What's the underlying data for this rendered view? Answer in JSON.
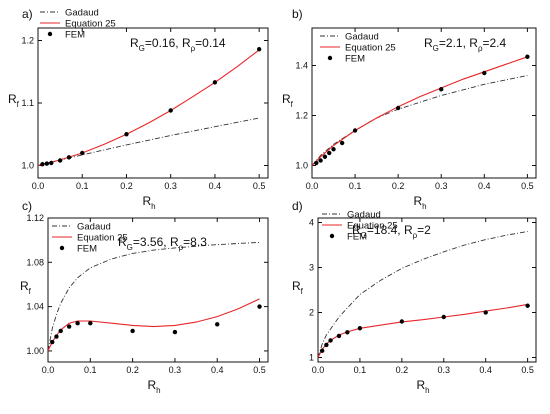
{
  "chart_data": [
    {
      "type": "line",
      "panel_label": "a)",
      "xlabel": "R",
      "xlabel_sub": "h",
      "ylabel": "R",
      "ylabel_sub": "f",
      "annotation": [
        {
          "t": "R"
        },
        {
          "t": "G",
          "sub": true
        },
        {
          "t": "=0.16, R"
        },
        {
          "t": "ρ",
          "sub": true
        },
        {
          "t": "=0.14"
        }
      ],
      "xlim": [
        0,
        0.52
      ],
      "ylim": [
        0.98,
        1.22
      ],
      "xticks": [
        0.0,
        0.1,
        0.2,
        0.3,
        0.4,
        0.5
      ],
      "xtick_labels": [
        "0.0",
        "0.1",
        "0.2",
        "0.3",
        "0.4",
        "0.5"
      ],
      "yticks": [
        1.0,
        1.1,
        1.2
      ],
      "ytick_labels": [
        "1.0",
        "1.1",
        "1.2"
      ],
      "series": [
        {
          "name": "Gadaud",
          "style": "dash-dot",
          "color": "#333333",
          "x": [
            0,
            0.1,
            0.2,
            0.3,
            0.4,
            0.5
          ],
          "y": [
            1.0,
            1.017,
            1.033,
            1.048,
            1.062,
            1.076
          ]
        },
        {
          "name": "Equation 25",
          "style": "solid",
          "color": "#e8262a",
          "x": [
            0,
            0.05,
            0.1,
            0.15,
            0.2,
            0.25,
            0.3,
            0.35,
            0.4,
            0.45,
            0.5
          ],
          "y": [
            1.0,
            1.009,
            1.02,
            1.034,
            1.05,
            1.068,
            1.088,
            1.11,
            1.133,
            1.158,
            1.185
          ]
        },
        {
          "name": "FEM",
          "style": "markers",
          "color": "#000000",
          "x": [
            0.01,
            0.02,
            0.03,
            0.05,
            0.07,
            0.1,
            0.2,
            0.3,
            0.4,
            0.5
          ],
          "y": [
            1.002,
            1.003,
            1.004,
            1.008,
            1.013,
            1.02,
            1.05,
            1.088,
            1.133,
            1.186
          ]
        }
      ]
    },
    {
      "type": "line",
      "panel_label": "b)",
      "xlabel": "R",
      "xlabel_sub": "h",
      "ylabel": "R",
      "ylabel_sub": "f",
      "annotation": [
        {
          "t": "R"
        },
        {
          "t": "G",
          "sub": true
        },
        {
          "t": "=2.1, R"
        },
        {
          "t": "ρ",
          "sub": true
        },
        {
          "t": "=2.4"
        }
      ],
      "xlim": [
        0,
        0.52
      ],
      "ylim": [
        0.95,
        1.55
      ],
      "xticks": [
        0.0,
        0.1,
        0.2,
        0.3,
        0.4,
        0.5
      ],
      "xtick_labels": [
        "0.0",
        "0.1",
        "0.2",
        "0.3",
        "0.4",
        "0.5"
      ],
      "yticks": [
        1.0,
        1.2,
        1.4
      ],
      "ytick_labels": [
        "1.0",
        "1.2",
        "1.4"
      ],
      "series": [
        {
          "name": "Gadaud",
          "style": "dash-dot",
          "color": "#333333",
          "x": [
            0,
            0.02,
            0.05,
            0.1,
            0.15,
            0.2,
            0.3,
            0.4,
            0.5
          ],
          "y": [
            1.0,
            1.04,
            1.085,
            1.14,
            1.19,
            1.225,
            1.28,
            1.325,
            1.36
          ]
        },
        {
          "name": "Equation 25",
          "style": "solid",
          "color": "#e8262a",
          "x": [
            0,
            0.02,
            0.05,
            0.1,
            0.15,
            0.2,
            0.25,
            0.3,
            0.35,
            0.4,
            0.45,
            0.5
          ],
          "y": [
            1.0,
            1.035,
            1.08,
            1.14,
            1.19,
            1.235,
            1.275,
            1.31,
            1.345,
            1.375,
            1.405,
            1.435
          ]
        },
        {
          "name": "FEM",
          "style": "markers",
          "color": "#000000",
          "x": [
            0.01,
            0.02,
            0.03,
            0.04,
            0.05,
            0.07,
            0.1,
            0.2,
            0.3,
            0.4,
            0.5
          ],
          "y": [
            1.01,
            1.02,
            1.035,
            1.05,
            1.065,
            1.09,
            1.14,
            1.23,
            1.305,
            1.37,
            1.435
          ]
        }
      ]
    },
    {
      "type": "line",
      "panel_label": "c)",
      "xlabel": "R",
      "xlabel_sub": "h",
      "ylabel": "R",
      "ylabel_sub": "f",
      "annotation": [
        {
          "t": "R"
        },
        {
          "t": "G",
          "sub": true
        },
        {
          "t": "=3.56, R"
        },
        {
          "t": "ρ",
          "sub": true
        },
        {
          "t": "=8.3"
        }
      ],
      "xlim": [
        0,
        0.52
      ],
      "ylim": [
        0.99,
        1.12
      ],
      "xticks": [
        0.0,
        0.1,
        0.2,
        0.3,
        0.4,
        0.5
      ],
      "xtick_labels": [
        "0.0",
        "0.1",
        "0.2",
        "0.3",
        "0.4",
        "0.5"
      ],
      "yticks": [
        1.0,
        1.04,
        1.08,
        1.12
      ],
      "ytick_labels": [
        "1.00",
        "1.04",
        "1.08",
        "1.12"
      ],
      "series": [
        {
          "name": "Gadaud",
          "style": "dash-dot",
          "color": "#333333",
          "x": [
            0,
            0.01,
            0.02,
            0.03,
            0.05,
            0.07,
            0.1,
            0.15,
            0.2,
            0.25,
            0.3,
            0.4,
            0.5
          ],
          "y": [
            1.0,
            1.02,
            1.033,
            1.043,
            1.057,
            1.066,
            1.075,
            1.083,
            1.088,
            1.091,
            1.093,
            1.096,
            1.098
          ]
        },
        {
          "name": "Equation 25",
          "style": "solid",
          "color": "#e8262a",
          "x": [
            0,
            0.01,
            0.02,
            0.03,
            0.05,
            0.07,
            0.1,
            0.15,
            0.2,
            0.25,
            0.3,
            0.35,
            0.4,
            0.45,
            0.5
          ],
          "y": [
            1.0,
            1.008,
            1.014,
            1.019,
            1.025,
            1.027,
            1.027,
            1.025,
            1.023,
            1.022,
            1.023,
            1.026,
            1.031,
            1.038,
            1.047
          ]
        },
        {
          "name": "FEM",
          "style": "markers",
          "color": "#000000",
          "x": [
            0.01,
            0.02,
            0.03,
            0.05,
            0.07,
            0.1,
            0.2,
            0.3,
            0.4,
            0.5
          ],
          "y": [
            1.008,
            1.013,
            1.018,
            1.022,
            1.025,
            1.025,
            1.018,
            1.017,
            1.024,
            1.04
          ]
        }
      ]
    },
    {
      "type": "line",
      "panel_label": "d)",
      "xlabel": "R",
      "xlabel_sub": "h",
      "ylabel": "R",
      "ylabel_sub": "f",
      "annotation": [
        {
          "t": "R"
        },
        {
          "t": "G",
          "sub": true
        },
        {
          "t": "=18.4, R"
        },
        {
          "t": "ρ",
          "sub": true
        },
        {
          "t": "=2"
        }
      ],
      "xlim": [
        0,
        0.52
      ],
      "ylim": [
        0.9,
        4.1
      ],
      "xticks": [
        0.0,
        0.1,
        0.2,
        0.3,
        0.4,
        0.5
      ],
      "xtick_labels": [
        "0.0",
        "0.1",
        "0.2",
        "0.3",
        "0.4",
        "0.5"
      ],
      "yticks": [
        1,
        2,
        3,
        4
      ],
      "ytick_labels": [
        "1",
        "2",
        "3",
        "4"
      ],
      "series": [
        {
          "name": "Gadaud",
          "style": "dash-dot",
          "color": "#333333",
          "x": [
            0,
            0.01,
            0.02,
            0.05,
            0.1,
            0.15,
            0.2,
            0.25,
            0.3,
            0.35,
            0.4,
            0.45,
            0.5
          ],
          "y": [
            1.0,
            1.3,
            1.5,
            1.9,
            2.4,
            2.72,
            2.98,
            3.18,
            3.35,
            3.5,
            3.62,
            3.72,
            3.8
          ]
        },
        {
          "name": "Equation 25",
          "style": "solid",
          "color": "#e8262a",
          "x": [
            0,
            0.01,
            0.02,
            0.03,
            0.05,
            0.07,
            0.1,
            0.15,
            0.2,
            0.25,
            0.3,
            0.35,
            0.4,
            0.45,
            0.5
          ],
          "y": [
            1.0,
            1.18,
            1.3,
            1.38,
            1.5,
            1.57,
            1.65,
            1.72,
            1.79,
            1.84,
            1.9,
            1.96,
            2.03,
            2.1,
            2.18
          ]
        },
        {
          "name": "FEM",
          "style": "markers",
          "color": "#000000",
          "x": [
            0.01,
            0.02,
            0.03,
            0.05,
            0.07,
            0.1,
            0.2,
            0.3,
            0.4,
            0.5
          ],
          "y": [
            1.15,
            1.28,
            1.38,
            1.48,
            1.56,
            1.65,
            1.8,
            1.9,
            2.0,
            2.15
          ]
        }
      ]
    }
  ]
}
